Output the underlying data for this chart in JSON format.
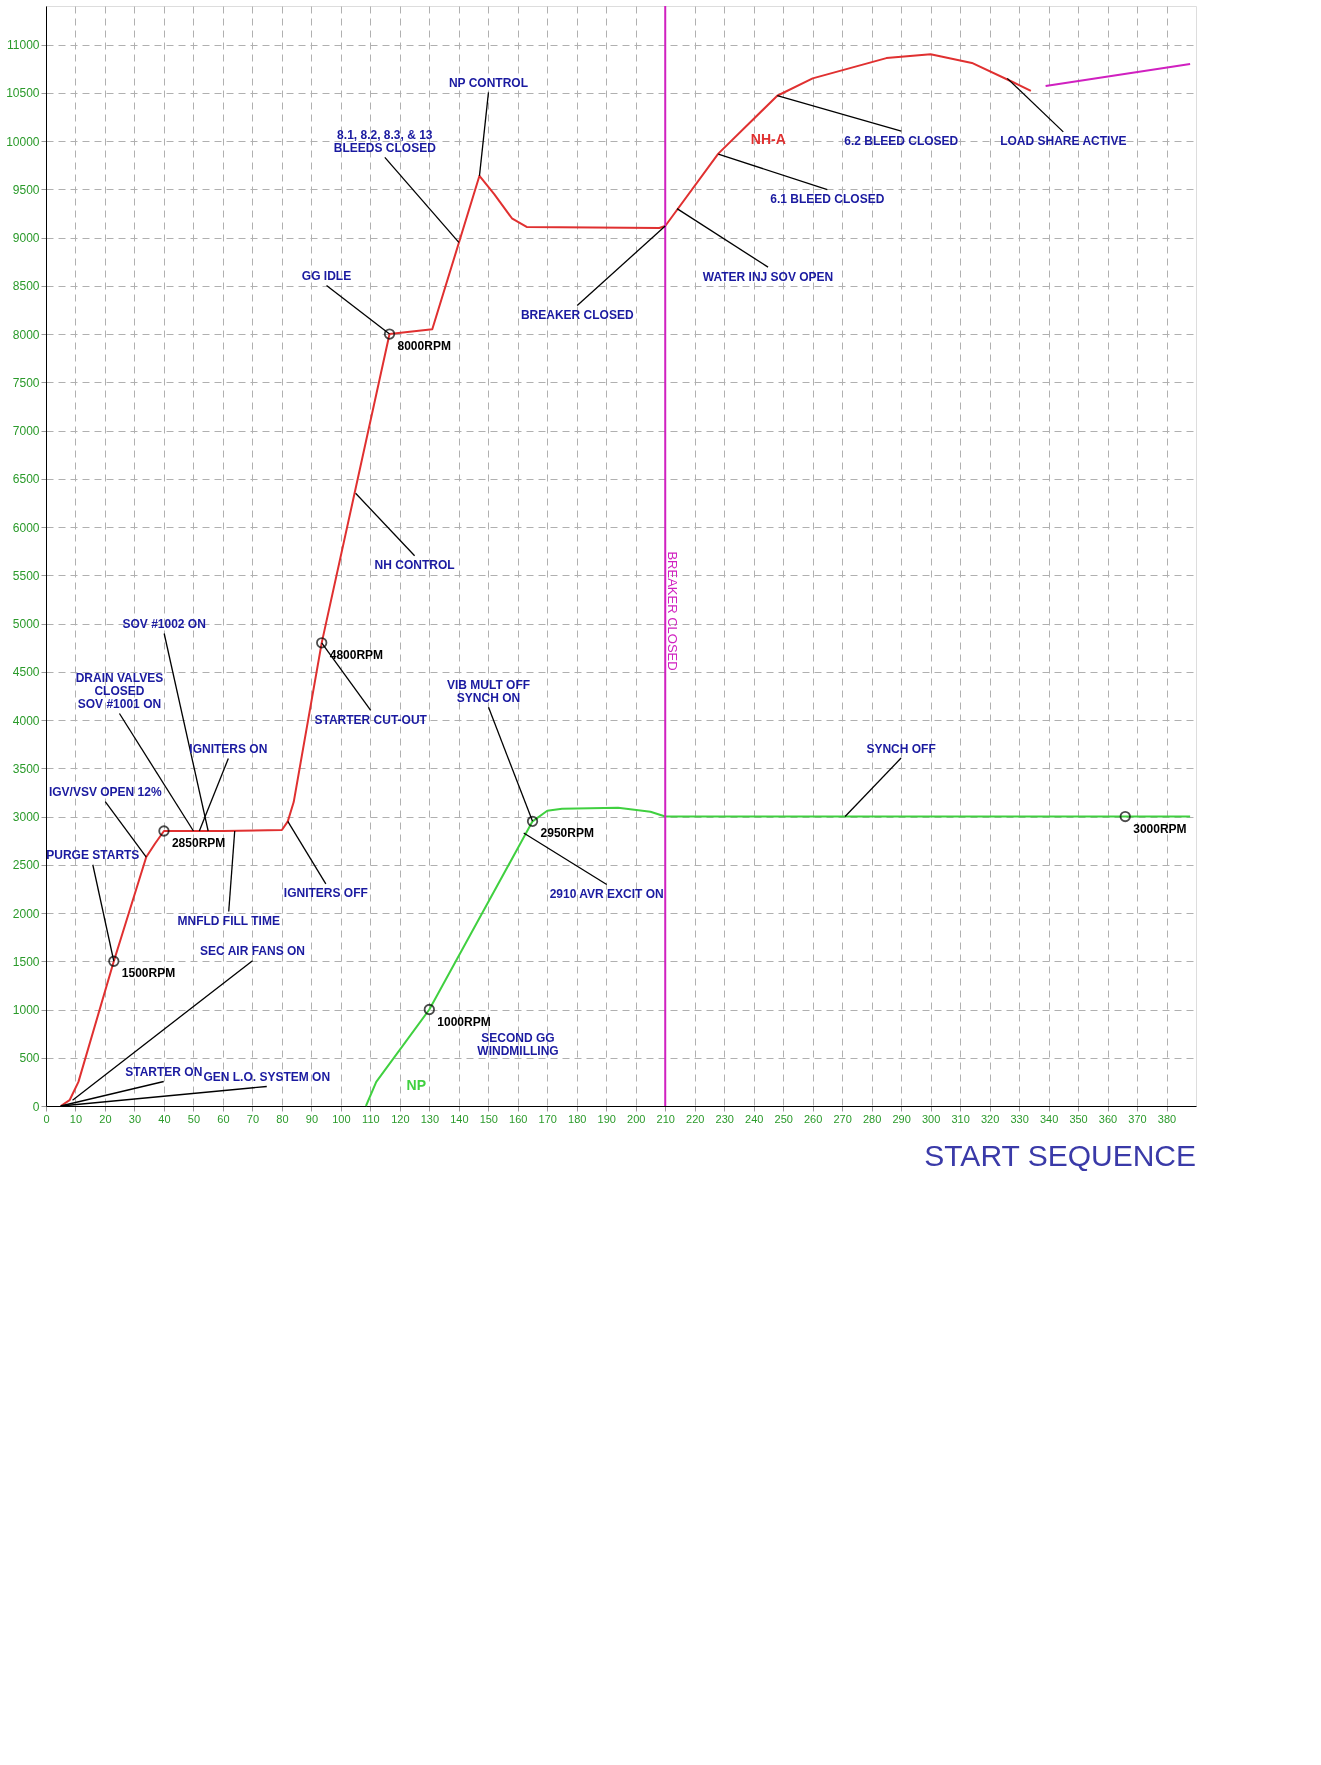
{
  "chart_data": {
    "type": "line",
    "title": "START SEQUENCE",
    "xlim": [
      0,
      390
    ],
    "ylim": [
      0,
      11400
    ],
    "xticks": [
      0,
      10,
      20,
      30,
      40,
      50,
      60,
      70,
      80,
      90,
      100,
      110,
      120,
      130,
      140,
      150,
      160,
      170,
      180,
      190,
      200,
      210,
      220,
      230,
      240,
      250,
      260,
      270,
      280,
      290,
      300,
      310,
      320,
      330,
      340,
      350,
      360,
      370,
      380
    ],
    "yticks": [
      0,
      500,
      1000,
      1500,
      2000,
      2500,
      3000,
      3500,
      4000,
      4500,
      5000,
      5500,
      6000,
      6500,
      7000,
      7500,
      8000,
      8500,
      9000,
      9500,
      10000,
      10500,
      11000
    ],
    "grid": true,
    "series": [
      {
        "name": "NH-A",
        "color": "#e03030",
        "x": [
          5,
          8,
          11,
          23,
          34,
          37,
          40,
          60,
          80,
          82,
          84,
          93.5,
          116.5,
          131,
          147,
          152,
          158,
          163,
          208,
          210,
          228,
          248,
          260,
          285,
          300,
          314,
          328,
          334
        ],
        "values": [
          0,
          60,
          250,
          1500,
          2580,
          2720,
          2850,
          2850,
          2860,
          2950,
          3150,
          4800,
          8000,
          8050,
          9640,
          9450,
          9200,
          9110,
          9100,
          9120,
          9870,
          10470,
          10650,
          10860,
          10900,
          10810,
          10610,
          10520
        ]
      },
      {
        "color": "#d020c0",
        "x": [
          339,
          388
        ],
        "values": [
          10570,
          10800
        ]
      },
      {
        "name": "NP",
        "color": "#40d040",
        "x": [
          108.5,
          112,
          130,
          165,
          170,
          175,
          194,
          205,
          210,
          388
        ],
        "values": [
          0,
          250,
          1000,
          2950,
          3060,
          3080,
          3090,
          3050,
          3000,
          3000
        ]
      },
      {
        "type": "scatter",
        "marker": "circle",
        "color": "#000000",
        "x": [
          23,
          40,
          93.5,
          116.5,
          130,
          165,
          366
        ],
        "values": [
          1500,
          2850,
          4800,
          8000,
          1000,
          2950,
          3000
        ],
        "value_labels": [
          "1500RPM",
          "2850RPM",
          "4800RPM",
          "8000RPM",
          "1000RPM",
          "2950RPM",
          "3000RPM"
        ]
      }
    ],
    "ref_lines": [
      {
        "axis": "x",
        "value": 210,
        "label": "BREAKER CLOSED",
        "color": "#d020c0"
      }
    ],
    "annotations": [
      {
        "text": "GEN L.O. SYSTEM ON",
        "x": 5,
        "y": 0
      },
      {
        "text": "SEC AIR FANS ON",
        "x": 9,
        "y": 60
      },
      {
        "text": "STARTER ON",
        "x": 5,
        "y": 0
      },
      {
        "text": "PURGE STARTS",
        "x": 23,
        "y": 1500
      },
      {
        "text": "IGV/VSV OPEN 12%",
        "x": 34,
        "y": 2580
      },
      {
        "text": "SOV #1002 ON",
        "x": 55,
        "y": 2850
      },
      {
        "text": "IGNITERS ON",
        "x": 52,
        "y": 2850
      },
      {
        "text": "DRAIN VALVES\nCLOSED\nSOV #1001 ON",
        "x": 50,
        "y": 2850
      },
      {
        "text": "MNFLD FILL TIME",
        "x": 64,
        "y": 2850
      },
      {
        "text": "IGNITERS OFF",
        "x": 82,
        "y": 2950
      },
      {
        "text": "STARTER CUT-OUT",
        "x": 93.5,
        "y": 4800
      },
      {
        "text": "NH CONTROL",
        "x": 105,
        "y": 6350
      },
      {
        "text": "GG IDLE",
        "x": 116.5,
        "y": 8000
      },
      {
        "text": "8.1, 8.2, 8.3, & 13\nBLEEDS CLOSED",
        "x": 140,
        "y": 8950
      },
      {
        "text": "NP CONTROL",
        "x": 147,
        "y": 9640
      },
      {
        "text": "BREAKER CLOSED",
        "x": 210,
        "y": 9120
      },
      {
        "text": "WATER INJ SOV OPEN",
        "x": 214,
        "y": 9300
      },
      {
        "text": "6.1 BLEED CLOSED",
        "x": 228,
        "y": 9865
      },
      {
        "text": "6.2 BLEED CLOSED",
        "x": 248,
        "y": 10470
      },
      {
        "text": "LOAD SHARE ACTIVE",
        "x": 326,
        "y": 10650
      },
      {
        "text": "SYNCH OFF",
        "x": 271,
        "y": 3000
      },
      "SECOND GG\nWINDMILLING",
      {
        "text": "VIB MULT OFF\nSYNCH ON",
        "x": 165,
        "y": 2950
      },
      {
        "text": "2910 AVR EXCIT ON",
        "x": 162,
        "y": 2830
      }
    ]
  }
}
